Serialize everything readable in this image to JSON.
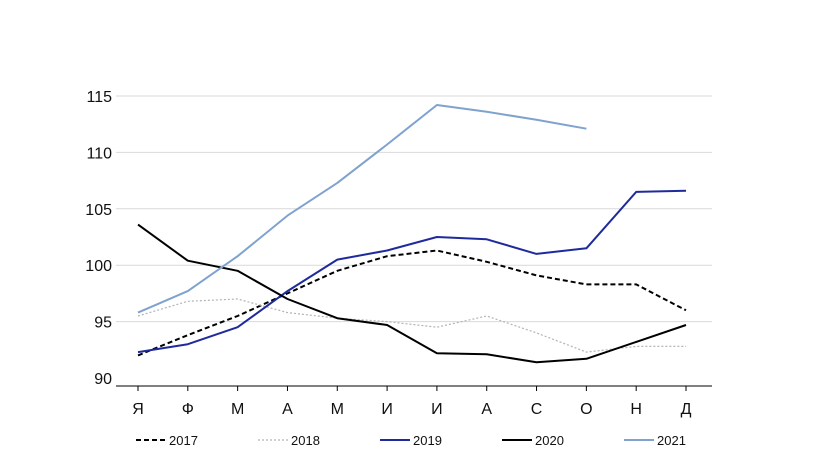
{
  "chart_data": {
    "type": "line",
    "categories": [
      "Я",
      "Ф",
      "М",
      "А",
      "М",
      "И",
      "И",
      "А",
      "С",
      "О",
      "Н",
      "Д"
    ],
    "yticks": [
      90,
      95,
      100,
      105,
      110,
      115
    ],
    "ylim": [
      90,
      116
    ],
    "grid": true,
    "legend_position": "bottom",
    "series": [
      {
        "name": "2017",
        "color": "#000000",
        "style": "dashed",
        "values": [
          92.0,
          93.8,
          95.5,
          97.5,
          99.5,
          100.8,
          101.3,
          100.3,
          99.1,
          98.3,
          98.3,
          96.0
        ]
      },
      {
        "name": "2018",
        "color": "#b3b3b3",
        "style": "dotted",
        "values": [
          95.5,
          96.8,
          97.0,
          95.8,
          95.3,
          95.0,
          94.5,
          95.5,
          94.0,
          92.3,
          92.8,
          92.8
        ]
      },
      {
        "name": "2019",
        "color": "#1f2a9c",
        "style": "solid",
        "values": [
          92.3,
          93.0,
          94.5,
          97.7,
          100.5,
          101.3,
          102.5,
          102.3,
          101.0,
          101.5,
          106.5,
          106.6
        ]
      },
      {
        "name": "2020",
        "color": "#000000",
        "style": "solid",
        "values": [
          103.6,
          100.4,
          99.5,
          97.0,
          95.3,
          94.7,
          92.2,
          92.1,
          91.4,
          91.7,
          93.2,
          94.7
        ]
      },
      {
        "name": "2021",
        "color": "#7fa2cf",
        "style": "solid",
        "values": [
          95.8,
          97.7,
          100.8,
          104.4,
          107.3,
          110.7,
          114.2,
          113.6,
          112.9,
          112.1,
          null,
          null
        ]
      }
    ]
  }
}
